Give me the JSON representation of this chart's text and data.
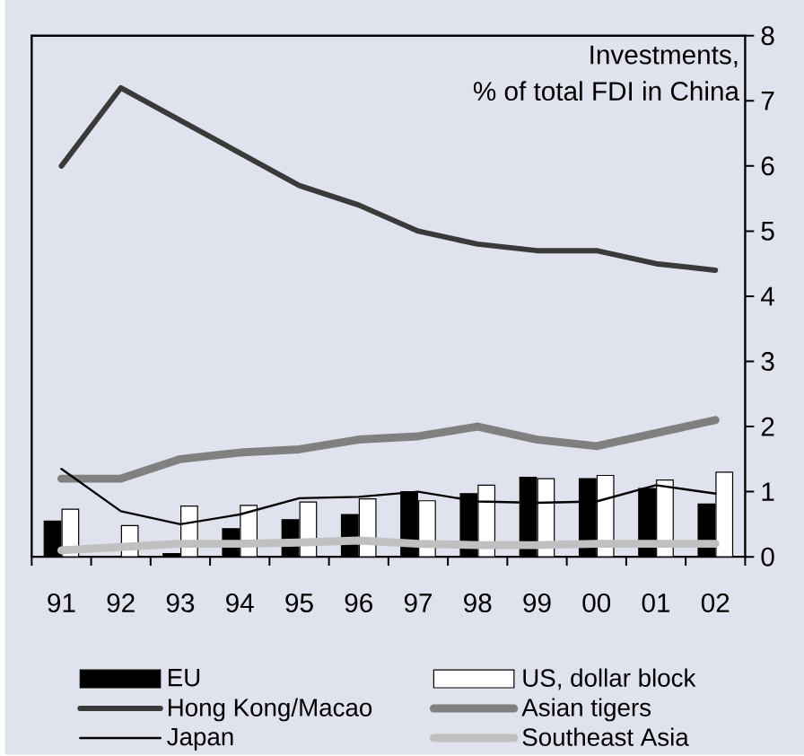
{
  "chart_data": {
    "type": "bar",
    "annotations": [
      "Investments,",
      "% of total FDI in China"
    ],
    "categories": [
      "91",
      "92",
      "93",
      "94",
      "95",
      "96",
      "97",
      "98",
      "99",
      "00",
      "01",
      "02"
    ],
    "ylim": [
      0,
      8
    ],
    "yticks": [
      0,
      1,
      2,
      3,
      4,
      5,
      6,
      7,
      8
    ],
    "legend": "bottom",
    "series": [
      {
        "name": "EU",
        "color": "#000000",
        "values": [
          0.55,
          null,
          0.05,
          0.43,
          0.57,
          0.65,
          1.0,
          0.97,
          1.22,
          1.2,
          1.05,
          0.81
        ]
      },
      {
        "name": "US, dollar block",
        "color": "#ffffff",
        "values": [
          0.73,
          0.48,
          0.78,
          0.79,
          0.84,
          0.89,
          0.86,
          1.1,
          1.2,
          1.25,
          1.18,
          1.3
        ]
      },
      {
        "name": "Hong Kong/Macao",
        "type": "line",
        "color": "#3a3a3a",
        "values": [
          6.0,
          7.2,
          6.7,
          6.2,
          5.7,
          5.4,
          5.0,
          4.8,
          4.7,
          4.7,
          4.5,
          4.4
        ]
      },
      {
        "name": "Asian tigers",
        "type": "line",
        "color": "#808080",
        "values": [
          1.2,
          1.2,
          1.5,
          1.6,
          1.65,
          1.8,
          1.85,
          2.0,
          1.8,
          1.7,
          1.9,
          2.1
        ]
      },
      {
        "name": "Japan",
        "type": "line",
        "color": "#000000",
        "values": [
          1.35,
          0.7,
          0.5,
          0.65,
          0.9,
          0.92,
          1.0,
          0.85,
          0.83,
          0.85,
          1.1,
          0.97
        ]
      },
      {
        "name": "Southeast Asia",
        "type": "line",
        "color": "#c0c0c0",
        "values": [
          0.1,
          0.15,
          0.2,
          0.2,
          0.22,
          0.25,
          0.2,
          0.18,
          0.18,
          0.2,
          0.2,
          0.2
        ]
      }
    ]
  }
}
